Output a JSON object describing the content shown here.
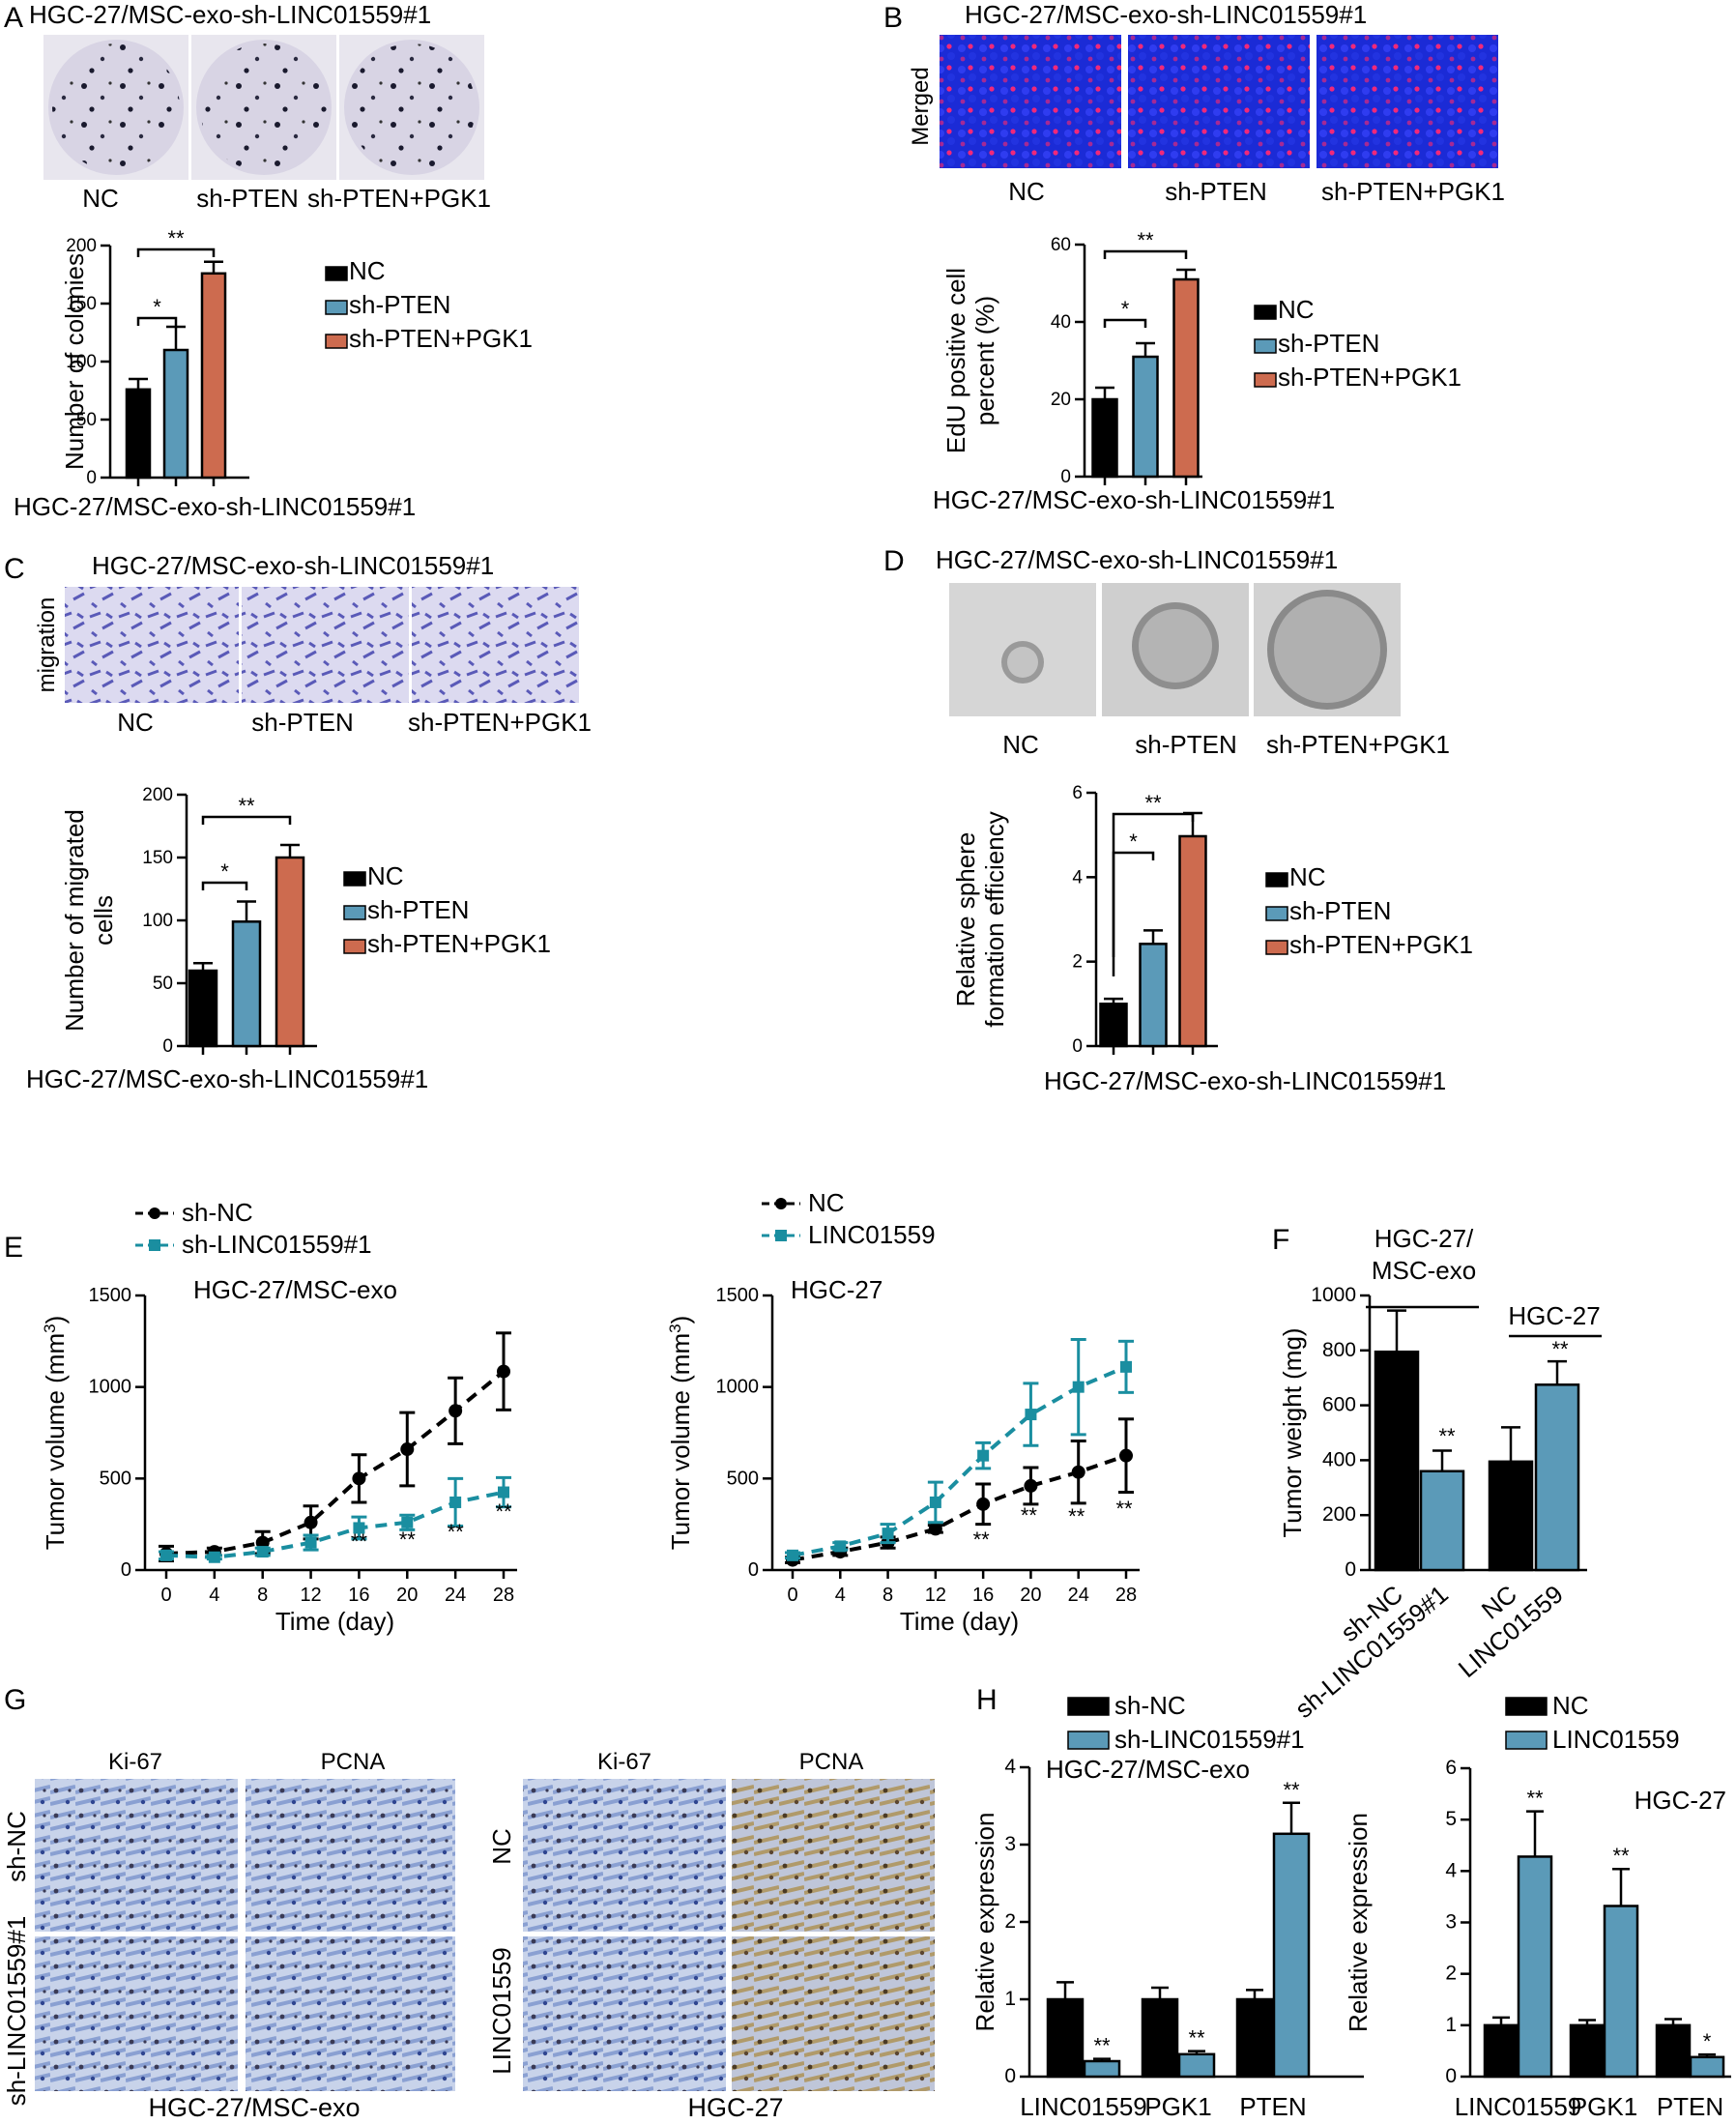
{
  "colors": {
    "black": "#000000",
    "blue": "#5b9ab8",
    "orange": "#cd6b4f",
    "teal": "#1a8ea0",
    "nuclei_blue": "#1b2bd6",
    "nuclei_pink": "#f0287a",
    "stain_purple": "#5a5ab8",
    "ihc_blue": "#7a93cc"
  },
  "icons": [
    "legend-square-icon",
    "legend-line-icon"
  ],
  "panels": {
    "A": {
      "letter": "A",
      "title": "HGC-27/MSC-exo-sh-LINC01559#1",
      "images": [
        "NC",
        "sh-PTEN",
        "sh-PTEN+PGK1"
      ]
    },
    "B": {
      "letter": "B",
      "title": "HGC-27/MSC-exo-sh-LINC01559#1",
      "row_label": "Merged",
      "images": [
        "NC",
        "sh-PTEN",
        "sh-PTEN+PGK1"
      ]
    },
    "C": {
      "letter": "C",
      "title": "HGC-27/MSC-exo-sh-LINC01559#1",
      "row_label": "migration",
      "images": [
        "NC",
        "sh-PTEN",
        "sh-PTEN+PGK1"
      ]
    },
    "D": {
      "letter": "D",
      "title": "HGC-27/MSC-exo-sh-LINC01559#1",
      "images": [
        "NC",
        "sh-PTEN",
        "sh-PTEN+PGK1"
      ]
    },
    "E": {
      "letter": "E"
    },
    "F": {
      "letter": "F"
    },
    "G": {
      "letter": "G",
      "left_cols": [
        "Ki-67",
        "PCNA"
      ],
      "left_rows": [
        "sh-NC",
        "sh-LINC01559#1"
      ],
      "left_caption": "HGC-27/MSC-exo",
      "right_cols": [
        "Ki-67",
        "PCNA"
      ],
      "right_rows": [
        "NC",
        "LINC01559"
      ],
      "right_caption": "HGC-27"
    },
    "H": {
      "letter": "H"
    }
  },
  "chart_data": [
    {
      "id": "A",
      "type": "bar",
      "categories": [
        "NC",
        "sh-PTEN",
        "sh-PTEN+PGK1"
      ],
      "values": [
        76,
        110,
        176
      ],
      "errors": [
        9,
        20,
        10
      ],
      "ylabel": "Number of colonies",
      "xlabel": "HGC-27/MSC-exo-sh-LINC01559#1",
      "ylim": [
        0,
        200
      ],
      "yticks": [
        "0",
        "50",
        "100",
        "150",
        "200"
      ],
      "legend": [
        "NC",
        "sh-PTEN",
        "sh-PTEN+PGK1"
      ],
      "sig": [
        "*",
        "**"
      ]
    },
    {
      "id": "B",
      "type": "bar",
      "categories": [
        "NC",
        "sh-PTEN",
        "sh-PTEN+PGK1"
      ],
      "values": [
        20,
        31,
        51
      ],
      "errors": [
        3,
        3.5,
        2.5
      ],
      "ylabel_lines": [
        "EdU positive cell",
        "percent (%)"
      ],
      "xlabel": "HGC-27/MSC-exo-sh-LINC01559#1",
      "ylim": [
        0,
        60
      ],
      "yticks": [
        "0",
        "20",
        "40",
        "60"
      ],
      "legend": [
        "NC",
        "sh-PTEN",
        "sh-PTEN+PGK1"
      ],
      "sig": [
        "*",
        "**"
      ]
    },
    {
      "id": "C",
      "type": "bar",
      "categories": [
        "NC",
        "sh-PTEN",
        "sh-PTEN+PGK1"
      ],
      "values": [
        60,
        99,
        150
      ],
      "errors": [
        6,
        16,
        10
      ],
      "ylabel_lines": [
        "Number of migrated",
        "cells"
      ],
      "xlabel": "HGC-27/MSC-exo-sh-LINC01559#1",
      "ylim": [
        0,
        200
      ],
      "yticks": [
        "0",
        "50",
        "100",
        "150",
        "200"
      ],
      "legend": [
        "NC",
        "sh-PTEN",
        "sh-PTEN+PGK1"
      ],
      "sig": [
        "*",
        "**"
      ]
    },
    {
      "id": "D",
      "type": "bar",
      "categories": [
        "NC",
        "sh-PTEN",
        "sh-PTEN+PGK1"
      ],
      "values": [
        1.0,
        2.42,
        4.97
      ],
      "errors": [
        0.12,
        0.32,
        0.55
      ],
      "ylabel_lines": [
        "Relative sphere",
        "formation efficiency"
      ],
      "xlabel": "HGC-27/MSC-exo-sh-LINC01559#1",
      "ylim": [
        0,
        6
      ],
      "yticks": [
        "0",
        "2",
        "4",
        "6"
      ],
      "legend": [
        "NC",
        "sh-PTEN",
        "sh-PTEN+PGK1"
      ],
      "sig": [
        "*",
        "**"
      ]
    },
    {
      "id": "E1",
      "type": "line",
      "x": [
        0,
        4,
        8,
        12,
        16,
        20,
        24,
        28
      ],
      "xticks": [
        "0",
        "4",
        "8",
        "12",
        "16",
        "20",
        "24",
        "28"
      ],
      "xlabel": "Time (day)",
      "ylabel": "Tumor volume (mm",
      "ylabel_sup": "3",
      "ylabel_end": ")",
      "ylim": [
        0,
        1500
      ],
      "yticks": [
        "0",
        "500",
        "1000",
        "1500"
      ],
      "annotation": "HGC-27/MSC-exo",
      "series": [
        {
          "name": "sh-NC",
          "values": [
            90,
            100,
            150,
            260,
            500,
            660,
            870,
            1085
          ],
          "errors": [
            40,
            20,
            60,
            90,
            130,
            200,
            180,
            210
          ]
        },
        {
          "name": "sh-LINC01559#1",
          "values": [
            80,
            70,
            100,
            150,
            230,
            260,
            370,
            425
          ],
          "errors": [
            20,
            10,
            20,
            40,
            60,
            40,
            130,
            80
          ]
        }
      ],
      "sig_x": [
        16,
        20,
        24,
        28
      ],
      "sig": [
        "**",
        "**",
        "**",
        "**"
      ]
    },
    {
      "id": "E2",
      "type": "line",
      "x": [
        0,
        4,
        8,
        12,
        16,
        20,
        24,
        28
      ],
      "xticks": [
        "0",
        "4",
        "8",
        "12",
        "16",
        "20",
        "24",
        "28"
      ],
      "xlabel": "Time (day)",
      "ylabel": "Tumor volume (mm",
      "ylabel_sup": "3",
      "ylabel_end": ")",
      "ylim": [
        0,
        1500
      ],
      "yticks": [
        "0",
        "500",
        "1000",
        "1500"
      ],
      "annotation": "HGC-27",
      "series": [
        {
          "name": "NC",
          "values": [
            55,
            100,
            150,
            225,
            360,
            460,
            535,
            625
          ],
          "errors": [
            15,
            20,
            30,
            20,
            110,
            100,
            170,
            200
          ]
        },
        {
          "name": "LINC01559",
          "values": [
            80,
            130,
            200,
            370,
            625,
            850,
            1000,
            1110
          ],
          "errors": [
            15,
            20,
            50,
            110,
            70,
            170,
            260,
            140
          ]
        }
      ],
      "sig_x": [
        16,
        20,
        24,
        28
      ],
      "sig": [
        "**",
        "**",
        "**",
        "**"
      ]
    },
    {
      "id": "F",
      "type": "bar",
      "categories": [
        "sh-NC",
        "sh-LINC01559#1",
        "NC",
        "LINC01559"
      ],
      "values": [
        795,
        360,
        395,
        675
      ],
      "errors": [
        150,
        75,
        125,
        85
      ],
      "ylabel": "Tumor weight (mg)",
      "ylim": [
        0,
        1000
      ],
      "yticks": [
        "0",
        "200",
        "400",
        "600",
        "800",
        "1000"
      ],
      "group_labels": [
        "HGC-27/",
        "MSC-exo",
        "HGC-27"
      ],
      "sig": [
        "**",
        "**"
      ]
    },
    {
      "id": "H1",
      "type": "bar",
      "categories": [
        "LINC01559",
        "PGK1",
        "PTEN"
      ],
      "ylabel": "Relative expression",
      "ylim": [
        0,
        4
      ],
      "yticks": [
        "0",
        "1",
        "2",
        "3",
        "4"
      ],
      "annotation": "HGC-27/MSC-exo",
      "series": [
        {
          "name": "sh-NC",
          "values": [
            1.0,
            1.0,
            1.0
          ],
          "errors": [
            0.22,
            0.15,
            0.12
          ]
        },
        {
          "name": "sh-LINC01559#1",
          "values": [
            0.2,
            0.29,
            3.14
          ],
          "errors": [
            0.03,
            0.04,
            0.4
          ]
        }
      ],
      "sig": [
        "**",
        "**",
        "**"
      ]
    },
    {
      "id": "H2",
      "type": "bar",
      "categories": [
        "LINC01559",
        "PGK1",
        "PTEN"
      ],
      "ylabel": "Relative expression",
      "ylim": [
        0,
        6
      ],
      "yticks": [
        "0",
        "1",
        "2",
        "3",
        "4",
        "5",
        "6"
      ],
      "annotation": "HGC-27",
      "series": [
        {
          "name": "NC",
          "values": [
            1.0,
            1.0,
            1.0
          ],
          "errors": [
            0.15,
            0.1,
            0.12
          ]
        },
        {
          "name": "LINC01559",
          "values": [
            4.28,
            3.32,
            0.38
          ],
          "errors": [
            0.88,
            0.72,
            0.05
          ]
        }
      ],
      "sig": [
        "**",
        "**",
        "*"
      ]
    }
  ]
}
